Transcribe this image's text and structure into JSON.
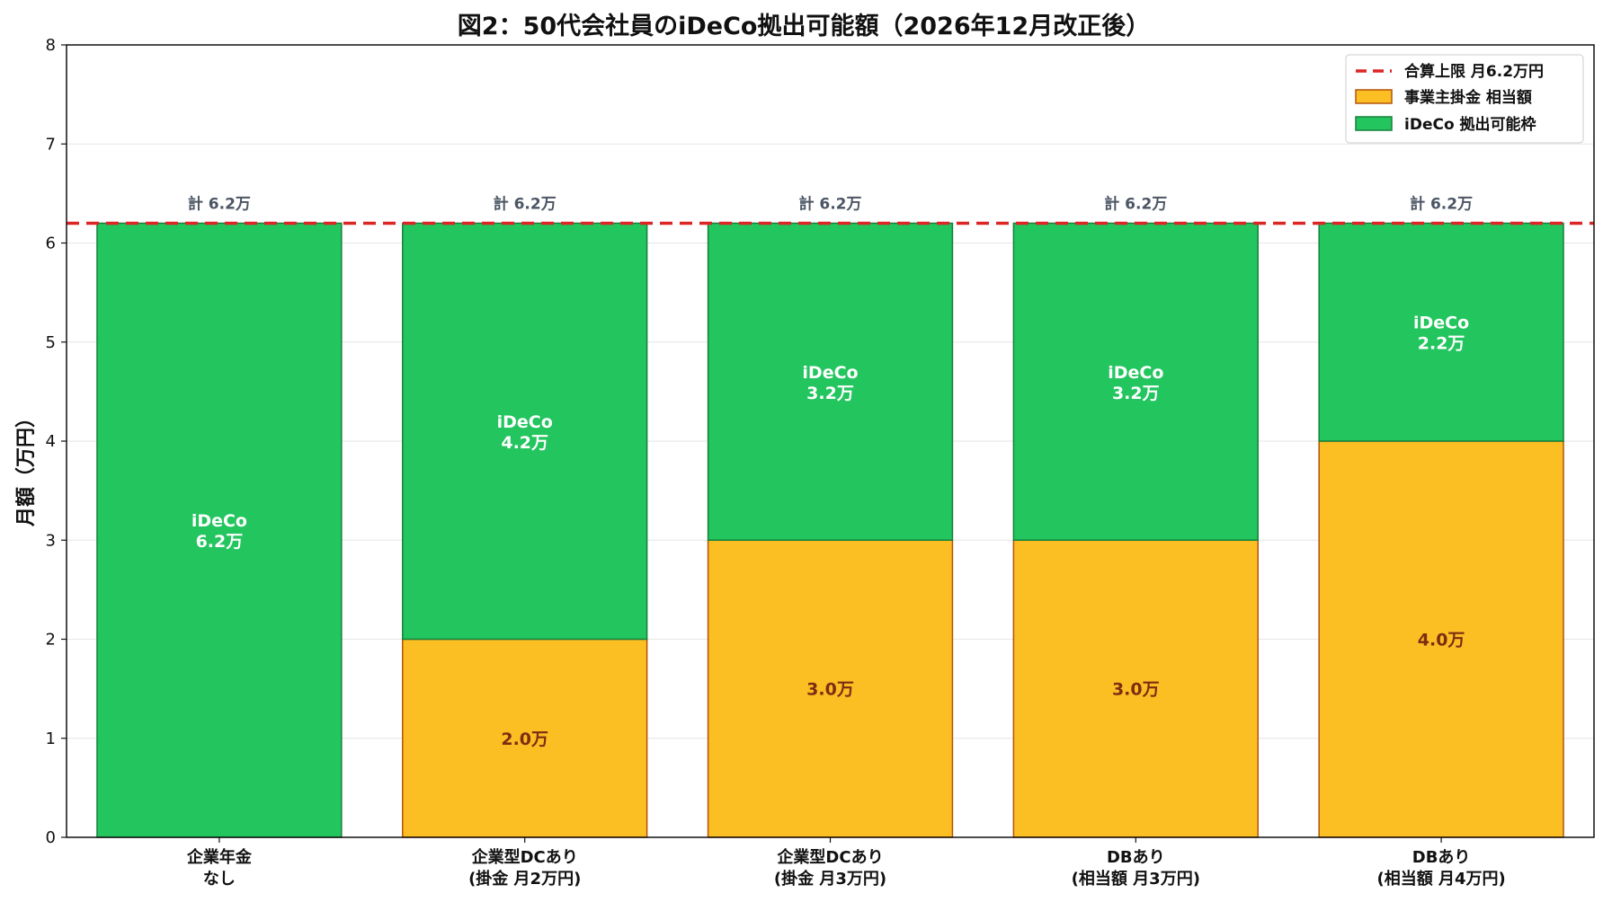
{
  "chart_data": {
    "type": "bar",
    "stacked": true,
    "title": "図2：50代会社員のiDeCo拠出可能額（2026年12月改正後）",
    "xlabel": "",
    "ylabel": "月額（万円）",
    "ylim": [
      0,
      8
    ],
    "yticks": [
      "0",
      "1",
      "2",
      "3",
      "4",
      "5",
      "6",
      "7",
      "8"
    ],
    "grid": true,
    "legend_position": "top-right",
    "categories": [
      [
        "企業年金",
        "なし"
      ],
      [
        "企業型DCあり",
        "(掛金 月2万円)"
      ],
      [
        "企業型DCあり",
        "(掛金 月3万円)"
      ],
      [
        "DBあり",
        "(相当額 月3万円)"
      ],
      [
        "DBあり",
        "(相当額 月4万円)"
      ]
    ],
    "series": [
      {
        "name": "事業主掛金 相当額",
        "color": "#fbbf24",
        "edge": "#b45309",
        "values": [
          0,
          2.0,
          3.0,
          3.0,
          4.0
        ],
        "labels": [
          "",
          "2.0万",
          "3.0万",
          "3.0万",
          "4.0万"
        ]
      },
      {
        "name": "iDeCo 拠出可能枠",
        "color": "#22c55e",
        "edge": "#15803d",
        "values": [
          6.2,
          4.2,
          3.2,
          3.2,
          2.2
        ],
        "labels": [
          [
            "iDeCo",
            "6.2万"
          ],
          [
            "iDeCo",
            "4.2万"
          ],
          [
            "iDeCo",
            "3.2万"
          ],
          [
            "iDeCo",
            "3.2万"
          ],
          [
            "iDeCo",
            "2.2万"
          ]
        ]
      }
    ],
    "totals": [
      "計 6.2万",
      "計 6.2万",
      "計 6.2万",
      "計 6.2万",
      "計 6.2万"
    ],
    "reference_line": {
      "name": "合算上限 月6.2万円",
      "value": 6.2,
      "color": "#dc2626",
      "style": "dashed"
    }
  }
}
